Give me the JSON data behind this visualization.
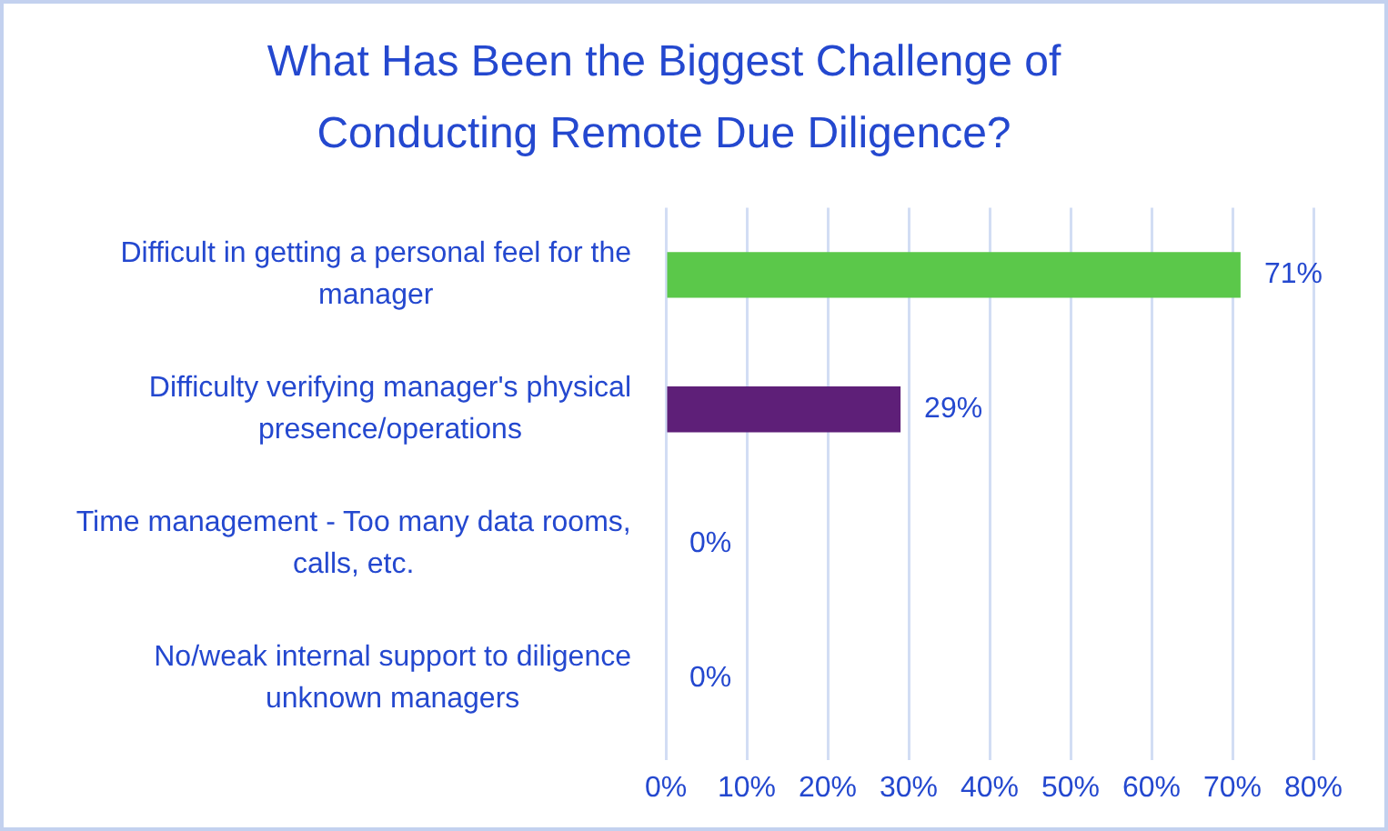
{
  "chart_data": {
    "type": "bar",
    "orientation": "horizontal",
    "title": "What Has Been the Biggest Challenge of Conducting Remote Due Diligence?",
    "categories": [
      "Difficult in getting a personal feel for the manager",
      "Difficulty verifying manager's physical presence/operations",
      "Time management - Too many data rooms, calls, etc.",
      "No/weak internal support to diligence unknown managers"
    ],
    "values": [
      71,
      29,
      0,
      0
    ],
    "colors": [
      "#5bc84a",
      "#5e1f78",
      null,
      null
    ],
    "value_labels": [
      "71%",
      "29%",
      "0%",
      "0%"
    ],
    "xlim": [
      0,
      80
    ],
    "xticks": [
      {
        "value": 0,
        "label": "0%"
      },
      {
        "value": 10,
        "label": "10%"
      },
      {
        "value": 20,
        "label": "20%"
      },
      {
        "value": 30,
        "label": "30%"
      },
      {
        "value": 40,
        "label": "40%"
      },
      {
        "value": 50,
        "label": "50%"
      },
      {
        "value": 60,
        "label": "60%"
      },
      {
        "value": 70,
        "label": "70%"
      },
      {
        "value": 80,
        "label": "80%"
      }
    ],
    "grid": "x"
  }
}
